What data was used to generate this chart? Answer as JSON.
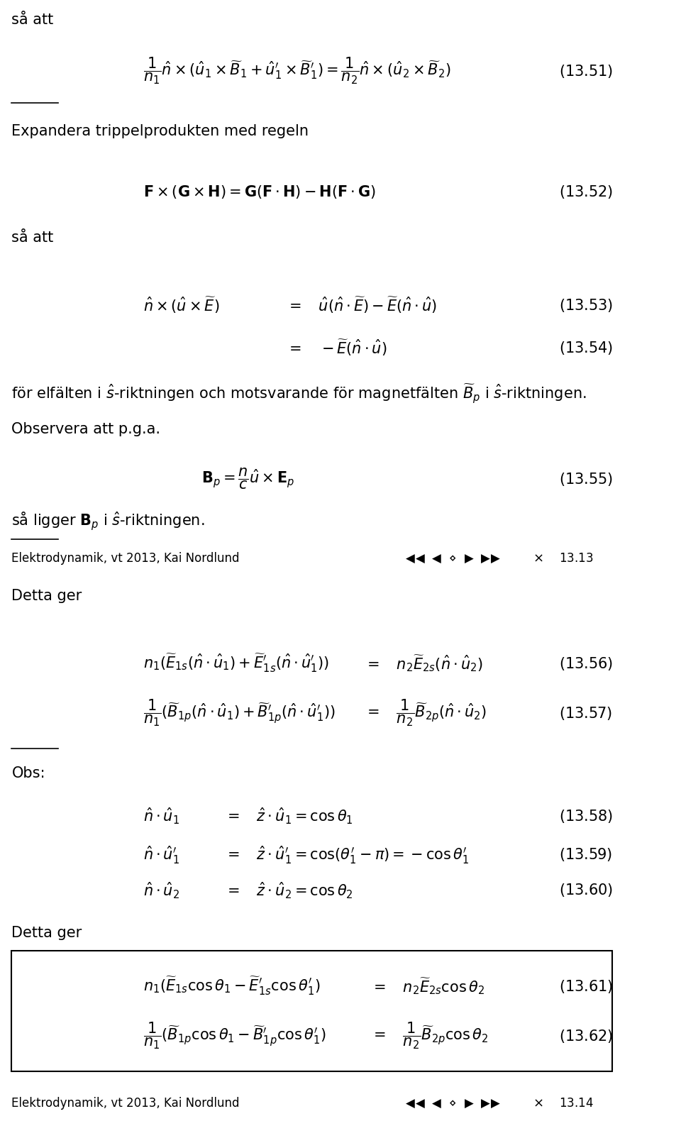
{
  "title": "Elektrodynamik, vt 2013, Kai Nordlund",
  "page_top": "13.13",
  "page_bottom": "13.14",
  "background": "#ffffff",
  "text_color": "#000000",
  "figsize": [
    9.6,
    15.8
  ],
  "dpi": 100
}
